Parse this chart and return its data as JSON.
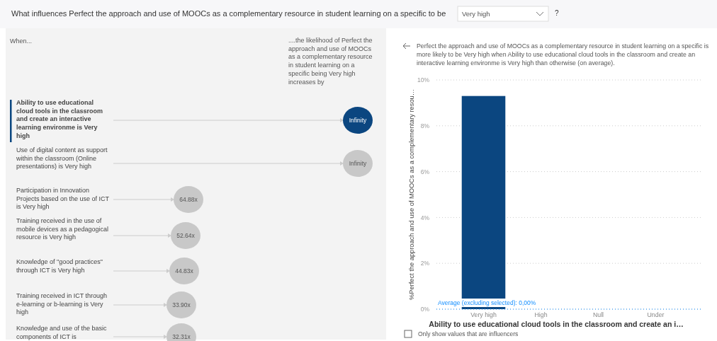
{
  "chart_data": [
    {
      "type": "other",
      "annotations": [
        "What influences Perfect the approach and use of MOOCs as a complementary resource in student learning on a specific to be",
        "Very high",
        "?",
        "When...",
        "....the likelihood of Perfect the approach and use of MOOCs as a complementary resource in student learning on a specific being Very high increases by",
        "Ability to use educational cloud tools in the classroom and create an interactive learning environme is Very high",
        "Infinity",
        "Use of digital content as support within the classroom (Online presentations) is Very high",
        "Infinity",
        "Participation in Innovation Projects based on the use of ICT is Very high",
        "64.88x",
        "Training received in the use of mobile devices as a pedagogical resource is Very high",
        "52.64x",
        "Knowledge of \"good practices\" through ICT is Very high",
        "44.83x",
        "Training received in ICT through e-learning or b-learning is Very high",
        "33.90x",
        "Knowledge and use of the basic components of ICT is",
        "32.31x"
      ]
    },
    {
      "type": "bar",
      "title": "Perfect the approach and use of MOOCs as a complementary resource in student learning on a specific is more likely to be Very high when Ability to use educational cloud tools in the classroom and create an interactive learning environme is Very high than otherwise (on average).",
      "xlabel": "Ability to use educational cloud tools in the classroom and create an i…",
      "ylabel": "%Perfect the approach and use of MOOCs as a complementary resou…",
      "categories": [
        "Very high",
        "High",
        "Null",
        "Under"
      ],
      "values": [
        9.3,
        0,
        0,
        0
      ],
      "color": "#0b4680",
      "ylim": [
        0,
        10
      ],
      "yticks": [
        {
          "value": 0,
          "label": "0%"
        },
        {
          "value": 2,
          "label": "2%"
        },
        {
          "value": 4,
          "label": "4%"
        },
        {
          "value": 6,
          "label": "6%"
        },
        {
          "value": 8,
          "label": "8%"
        },
        {
          "value": 10,
          "label": "10%"
        }
      ],
      "grid": "y",
      "ref_lines": [
        {
          "axis": "y",
          "value": 0,
          "label": "Average (excluding selected): 0,00%",
          "color": "#118dff"
        }
      ],
      "annotations": [
        "Only show values that are influencers"
      ]
    }
  ]
}
